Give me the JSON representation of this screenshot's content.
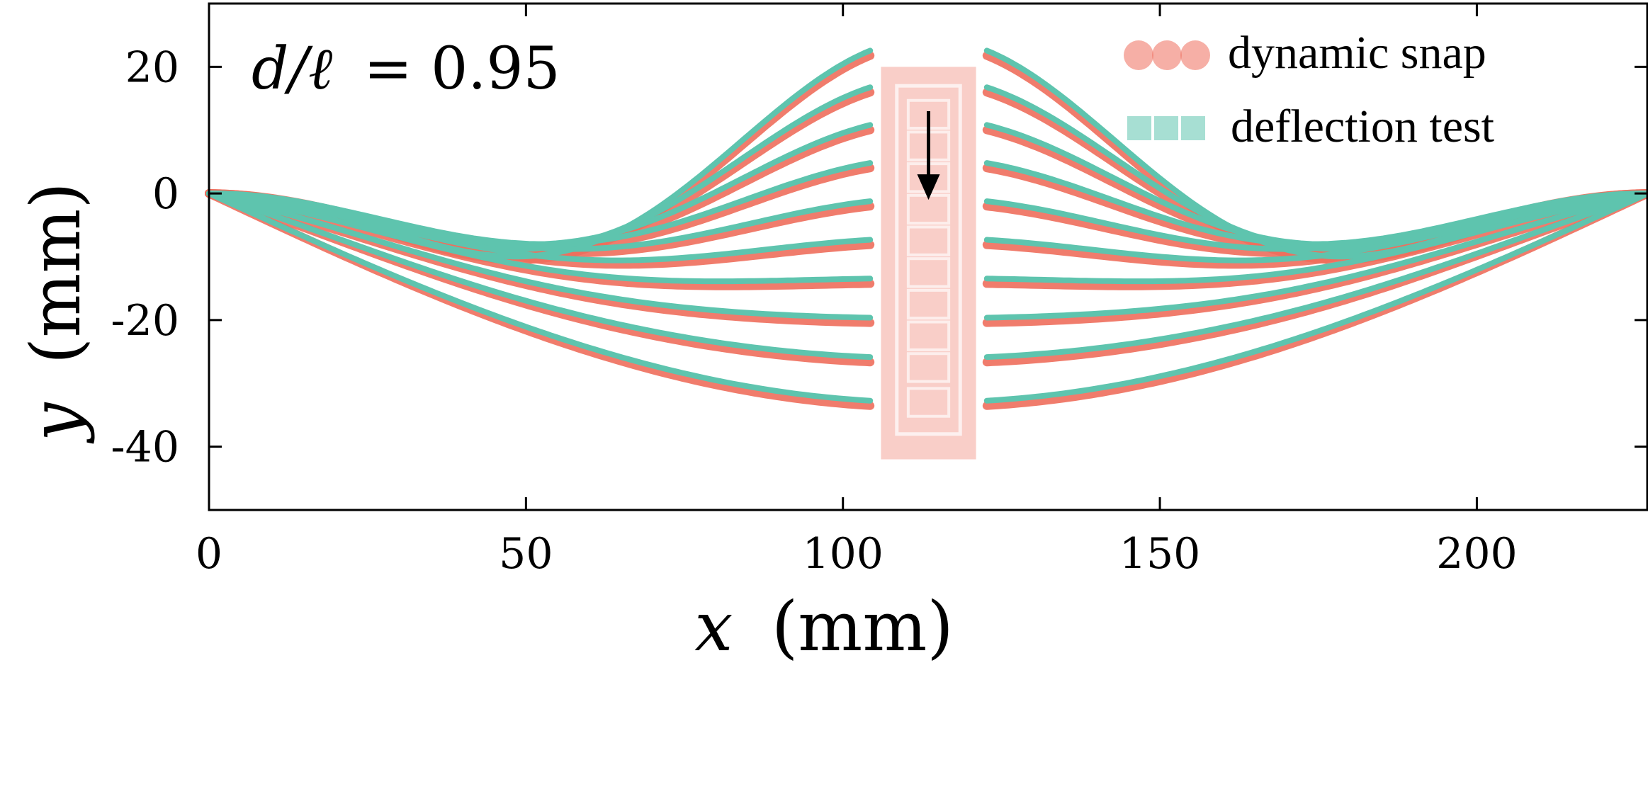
{
  "chart_data": {
    "type": "line",
    "xlabel_var": "x",
    "xlabel_unit": "(mm)",
    "ylabel_var": "y",
    "ylabel_unit": "(mm)",
    "xlim": [
      0,
      227
    ],
    "ylim": [
      -50,
      30
    ],
    "xticks": [
      0,
      50,
      100,
      150,
      200
    ],
    "yticks": [
      20,
      0,
      -20,
      -40
    ],
    "ytick_labels": [
      "20",
      "0",
      "-20",
      "-40"
    ],
    "annotation_var": "d/ℓ",
    "annotation_eq": "= 0.95",
    "legend": [
      {
        "label": "dynamic snap",
        "color": "#ee6e5c",
        "marker": "circle"
      },
      {
        "label": "deflection test",
        "color": "#5ec4ae",
        "marker": "square"
      }
    ],
    "legend_placement": "top-right",
    "grid": false,
    "colors": {
      "dynamic": "#ee6e5c",
      "deflection": "#5ec4ae",
      "clamp": "#f4a59a"
    },
    "clamp_x_range": [
      106,
      121
    ],
    "clamp_y_range": [
      -42,
      20
    ],
    "arrow": {
      "x": 113.5,
      "y_from": 13,
      "y_to": -1
    },
    "midpoint_x": 113.5,
    "gap_half_width": 6,
    "length": 227,
    "series": [
      {
        "midpoint_y": 12.5
      },
      {
        "midpoint_y": 7.5
      },
      {
        "midpoint_y": 2.5
      },
      {
        "midpoint_y": -2.5
      },
      {
        "midpoint_y": -7.5
      },
      {
        "midpoint_y": -12.5
      },
      {
        "midpoint_y": -17.5
      },
      {
        "midpoint_y": -22.5
      },
      {
        "midpoint_y": -27.5
      },
      {
        "midpoint_y": -33
      }
    ]
  }
}
